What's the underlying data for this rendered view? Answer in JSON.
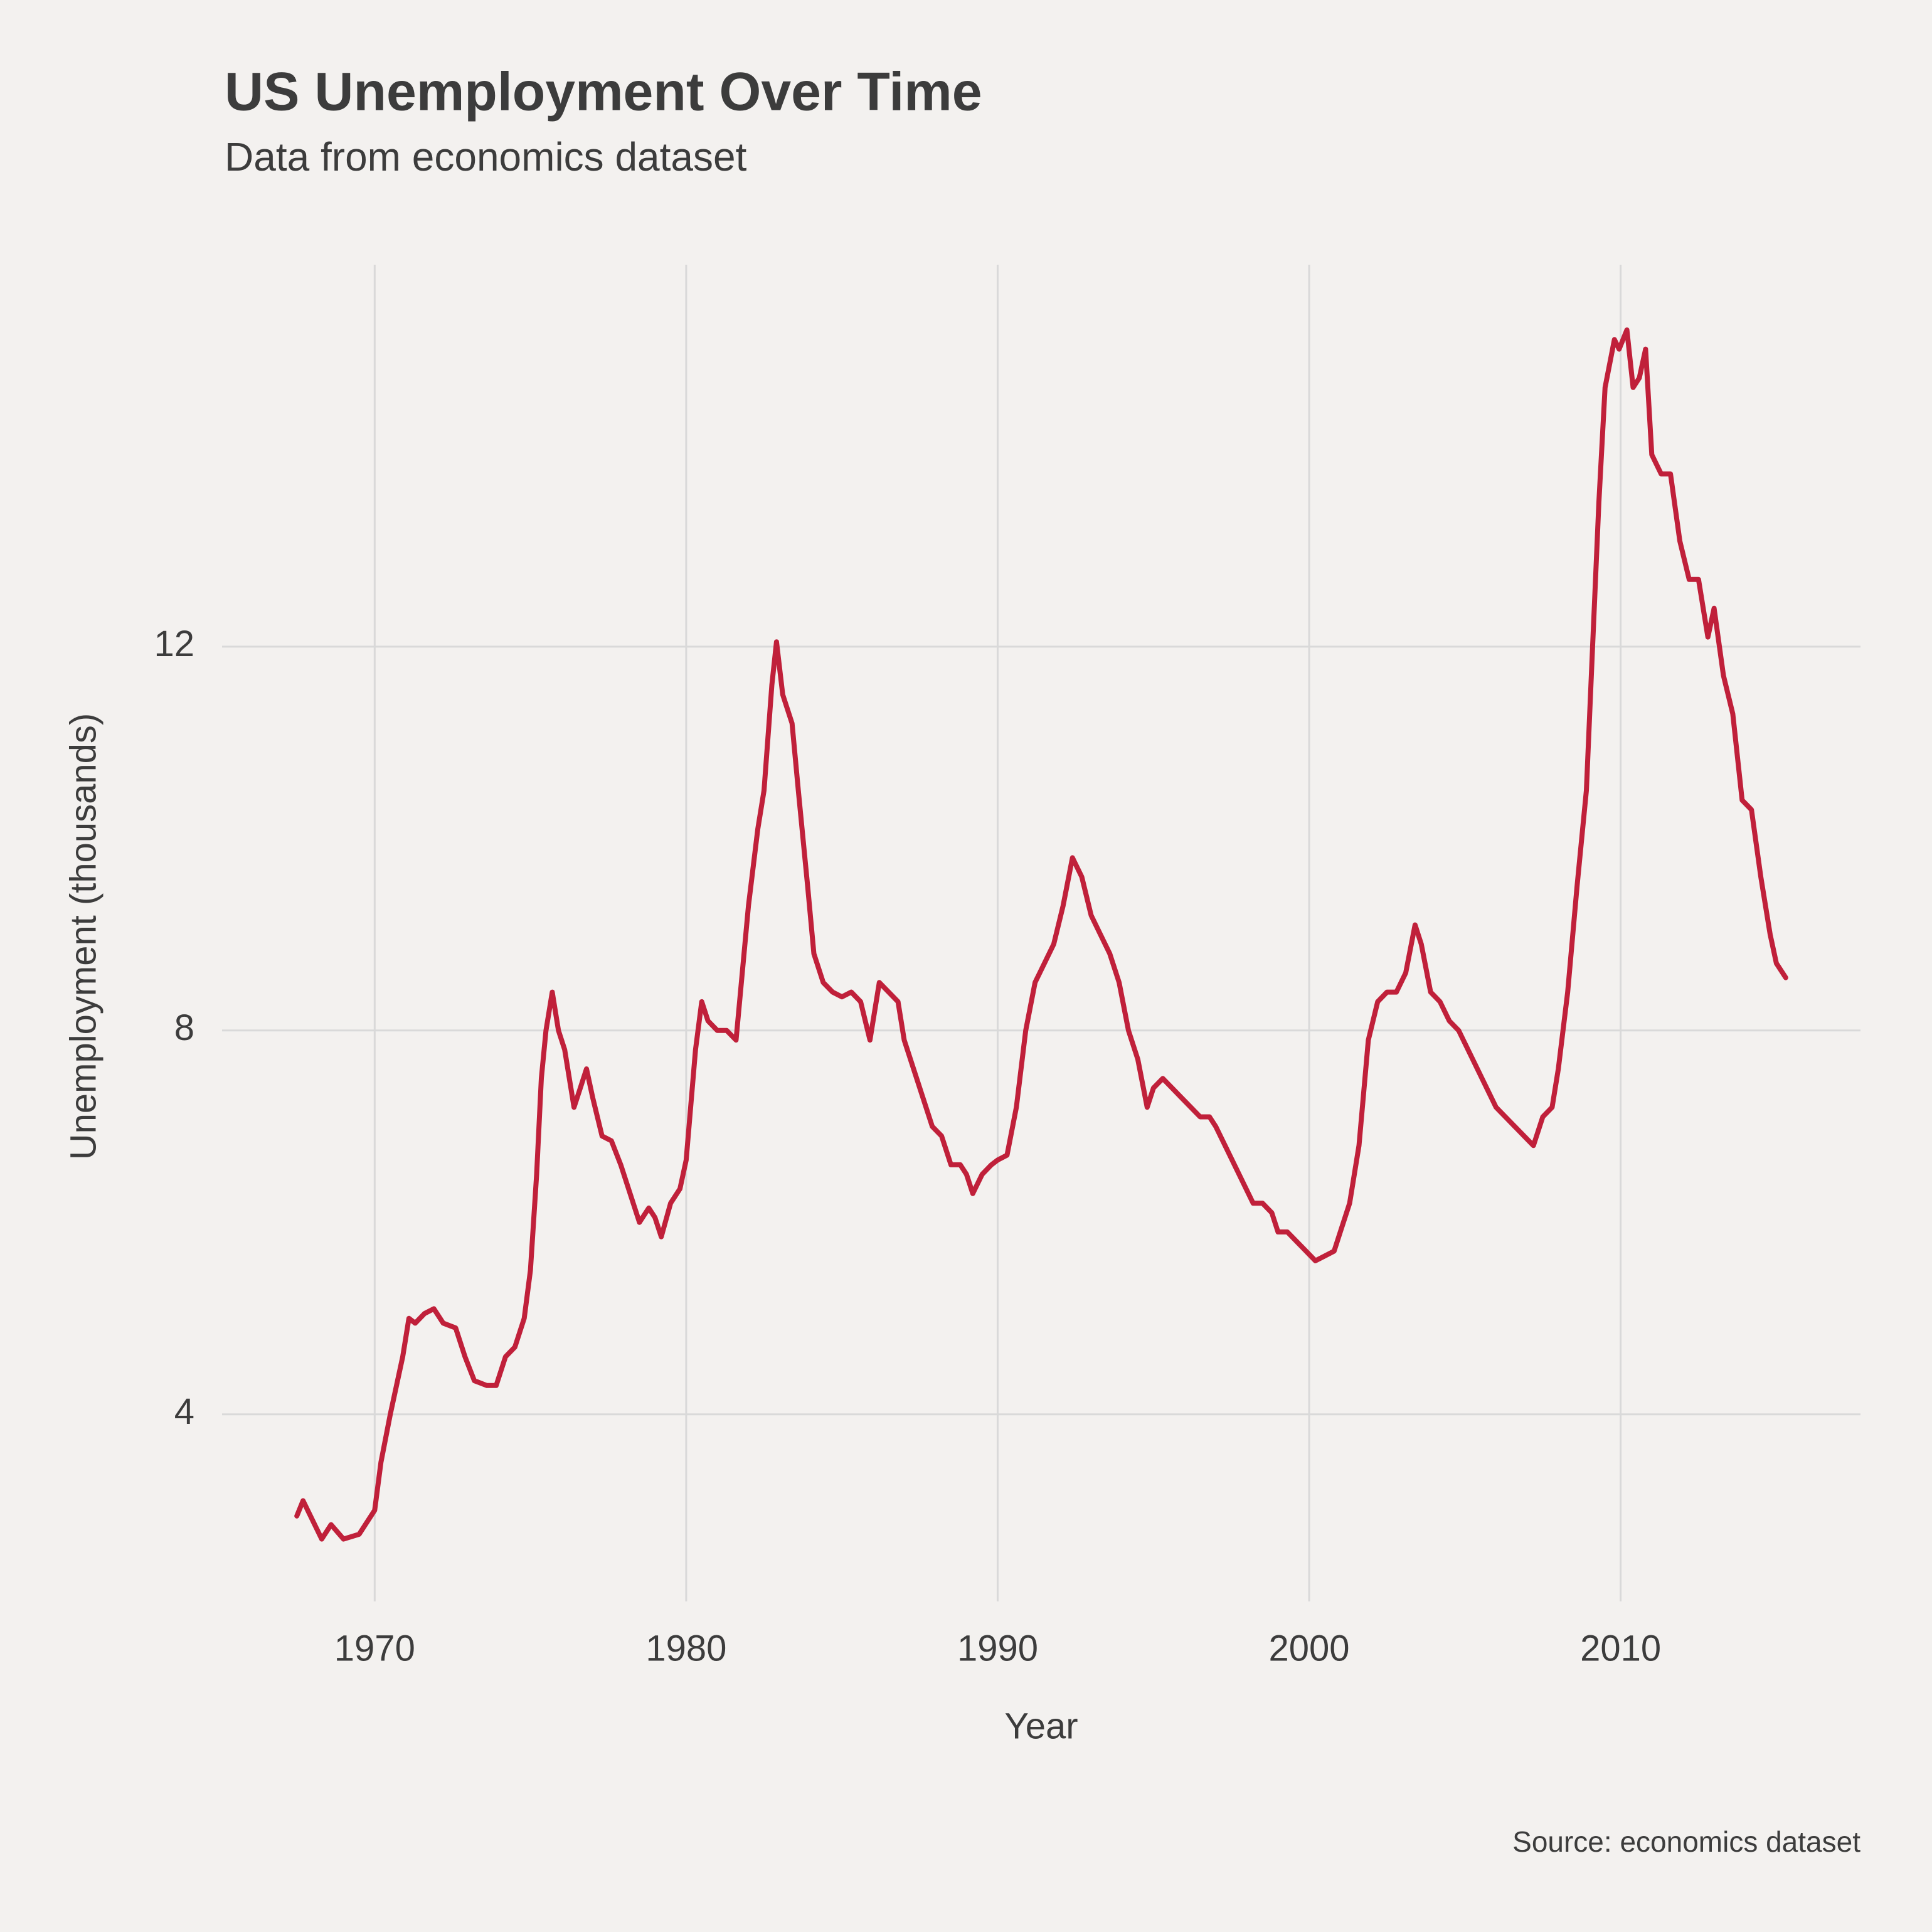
{
  "chart_data": {
    "type": "line",
    "title": "US Unemployment Over Time",
    "subtitle": "Data from economics dataset",
    "x_label": "Year",
    "y_label": "Unemployment (thousands)",
    "caption": "Source: economics dataset",
    "color": "#c0203a",
    "grid": true,
    "xlim": [
      1965.1,
      2017.7
    ],
    "ylim": [
      2.05,
      15.98
    ],
    "xticks": [
      1970,
      1980,
      1990,
      2000,
      2010
    ],
    "yticks": [
      4,
      8,
      12
    ],
    "x": [
      1967.5,
      1967.7,
      1968.0,
      1968.3,
      1968.6,
      1969.0,
      1969.5,
      1970.0,
      1970.2,
      1970.5,
      1970.9,
      1971.1,
      1971.3,
      1971.6,
      1971.9,
      1972.2,
      1972.6,
      1972.9,
      1973.2,
      1973.6,
      1973.9,
      1974.2,
      1974.5,
      1974.8,
      1975.0,
      1975.2,
      1975.35,
      1975.5,
      1975.7,
      1975.9,
      1976.1,
      1976.4,
      1976.6,
      1976.8,
      1977.0,
      1977.3,
      1977.6,
      1977.9,
      1978.2,
      1978.5,
      1978.8,
      1979.0,
      1979.2,
      1979.5,
      1979.8,
      1980.0,
      1980.3,
      1980.5,
      1980.7,
      1981.0,
      1981.3,
      1981.6,
      1981.8,
      1982.0,
      1982.3,
      1982.5,
      1982.75,
      1982.9,
      1983.1,
      1983.4,
      1983.6,
      1983.9,
      1984.1,
      1984.4,
      1984.7,
      1985.0,
      1985.3,
      1985.6,
      1985.9,
      1986.2,
      1986.5,
      1986.8,
      1987.0,
      1987.3,
      1987.6,
      1987.9,
      1988.2,
      1988.5,
      1988.8,
      1989.0,
      1989.2,
      1989.5,
      1989.8,
      1990.0,
      1990.3,
      1990.6,
      1990.9,
      1991.2,
      1991.5,
      1991.8,
      1992.1,
      1992.4,
      1992.7,
      1993.0,
      1993.3,
      1993.6,
      1993.9,
      1994.2,
      1994.5,
      1994.8,
      1995.0,
      1995.3,
      1995.6,
      1995.9,
      1996.2,
      1996.5,
      1996.8,
      1997.0,
      1997.3,
      1997.6,
      1997.9,
      1998.2,
      1998.5,
      1998.8,
      1999.0,
      1999.3,
      1999.6,
      1999.9,
      2000.2,
      2000.5,
      2000.8,
      2001.0,
      2001.3,
      2001.6,
      2001.9,
      2002.2,
      2002.5,
      2002.8,
      2003.1,
      2003.4,
      2003.6,
      2003.9,
      2004.2,
      2004.5,
      2004.8,
      2005.1,
      2005.4,
      2005.7,
      2006.0,
      2006.3,
      2006.6,
      2006.9,
      2007.2,
      2007.5,
      2007.8,
      2008.0,
      2008.3,
      2008.6,
      2008.9,
      2009.1,
      2009.3,
      2009.5,
      2009.8,
      2009.95,
      2010.2,
      2010.4,
      2010.6,
      2010.8,
      2011.0,
      2011.3,
      2011.6,
      2011.9,
      2012.2,
      2012.5,
      2012.8,
      2013.0,
      2013.3,
      2013.6,
      2013.9,
      2014.2,
      2014.5,
      2014.8,
      2015.0,
      2015.3
    ],
    "values": [
      2.94,
      3.1,
      2.9,
      2.7,
      2.85,
      2.7,
      2.75,
      3.0,
      3.5,
      4.0,
      4.6,
      5.0,
      4.95,
      5.05,
      5.1,
      4.95,
      4.9,
      4.6,
      4.35,
      4.3,
      4.3,
      4.6,
      4.7,
      5.0,
      5.5,
      6.5,
      7.5,
      8.0,
      8.4,
      8.0,
      7.8,
      7.2,
      7.4,
      7.6,
      7.3,
      6.9,
      6.85,
      6.6,
      6.3,
      6.0,
      6.15,
      6.05,
      5.85,
      6.2,
      6.35,
      6.65,
      7.8,
      8.3,
      8.1,
      8.0,
      8.0,
      7.9,
      8.6,
      9.3,
      10.1,
      10.5,
      11.6,
      12.05,
      11.5,
      11.2,
      10.5,
      9.5,
      8.8,
      8.5,
      8.4,
      8.35,
      8.4,
      8.3,
      7.9,
      8.5,
      8.4,
      8.3,
      7.9,
      7.6,
      7.3,
      7.0,
      6.9,
      6.6,
      6.6,
      6.5,
      6.3,
      6.5,
      6.6,
      6.65,
      6.7,
      7.2,
      8.0,
      8.5,
      8.7,
      8.9,
      9.3,
      9.8,
      9.6,
      9.2,
      9.0,
      8.8,
      8.5,
      8.0,
      7.7,
      7.2,
      7.4,
      7.5,
      7.4,
      7.3,
      7.2,
      7.1,
      7.1,
      7.0,
      6.8,
      6.6,
      6.4,
      6.2,
      6.2,
      6.1,
      5.9,
      5.9,
      5.8,
      5.7,
      5.6,
      5.65,
      5.7,
      5.9,
      6.2,
      6.8,
      7.9,
      8.3,
      8.4,
      8.4,
      8.6,
      9.1,
      8.9,
      8.4,
      8.3,
      8.1,
      8.0,
      7.8,
      7.6,
      7.4,
      7.2,
      7.1,
      7.0,
      6.9,
      6.8,
      7.1,
      7.2,
      7.6,
      8.4,
      9.5,
      10.5,
      12.0,
      13.5,
      14.7,
      15.2,
      15.1,
      15.3,
      14.7,
      14.8,
      15.1,
      14.0,
      13.8,
      13.8,
      13.1,
      12.7,
      12.7,
      12.1,
      12.4,
      11.7,
      11.3,
      10.4,
      10.3,
      9.6,
      9.0,
      8.7,
      8.55
    ]
  }
}
